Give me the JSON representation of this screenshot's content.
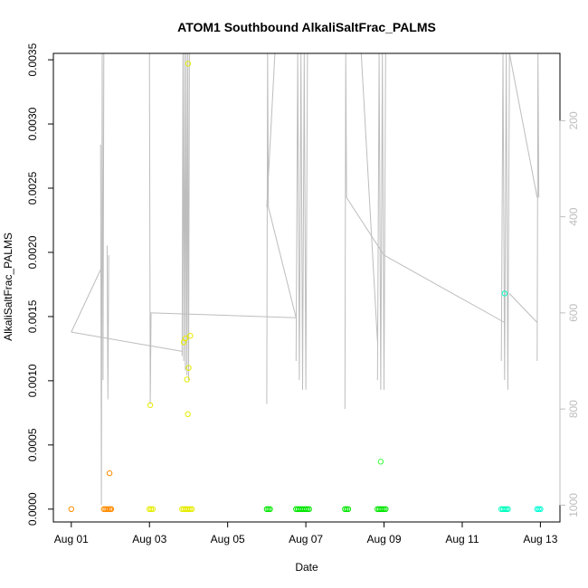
{
  "chart_data": {
    "type": "scatter",
    "title": "ATOM1 Southbound AlkaliSaltFrac_PALMS",
    "xlabel": "Date",
    "ylabel": "AlkaliSaltFrac_PALMS",
    "x_tick_labels": [
      "Aug 01",
      "Aug 03",
      "Aug 05",
      "Aug 07",
      "Aug 09",
      "Aug 11",
      "Aug 13"
    ],
    "x_ticks": [
      "2016-08-01",
      "2016-08-03",
      "2016-08-05",
      "2016-08-07",
      "2016-08-09",
      "2016-08-11",
      "2016-08-13"
    ],
    "xlim": [
      "2016-07-31T13:00",
      "2016-08-13T12:00"
    ],
    "ylim": [
      -0.0001,
      0.00355
    ],
    "y_ticks": [
      0.0,
      0.0005,
      0.001,
      0.0015,
      0.002,
      0.0025,
      0.003,
      0.0035
    ],
    "y_tick_labels": [
      "0.0000",
      "0.0005",
      "0.0010",
      "0.0015",
      "0.0020",
      "0.0025",
      "0.0030",
      "0.0035"
    ],
    "y2_axis": {
      "label": "",
      "reversed": true,
      "lim": [
        1035,
        60
      ],
      "ticks": [
        200,
        400,
        600,
        800,
        1000
      ],
      "tick_labels": [
        "200",
        "400",
        "600",
        "800",
        "1000"
      ],
      "color": "#bdbdbd"
    },
    "grid": false,
    "legend": "none",
    "colors": {
      "orange": "#ff8c00",
      "orange_light": "#ffa500",
      "yellow": "#e6ec00",
      "yellow_green": "#c8f000",
      "green": "#00e600",
      "green_light": "#3cff3c",
      "cyan": "#00ffbf",
      "teal": "#00ffd5",
      "pressure_line": "#bdbdbd"
    },
    "series": [
      {
        "kind": "points",
        "points": [
          {
            "t": "2016-08-01T00:00",
            "y": 0.0,
            "c": "#ff8c00"
          },
          {
            "t": "2016-08-01T20:00",
            "y": 0.0,
            "c": "#ff8c00"
          },
          {
            "t": "2016-08-01T21:00",
            "y": 0.0,
            "c": "#ff8c00"
          },
          {
            "t": "2016-08-01T22:00",
            "y": 0.0,
            "c": "#ff8c00"
          },
          {
            "t": "2016-08-01T23:00",
            "y": 0.0,
            "c": "#ff8c00"
          },
          {
            "t": "2016-08-02T00:00",
            "y": 0.0,
            "c": "#ff8c00"
          },
          {
            "t": "2016-08-02T00:30",
            "y": 0.0,
            "c": "#ff8c00"
          },
          {
            "t": "2016-08-01T23:30",
            "y": 0.00028,
            "c": "#ff8c00"
          },
          {
            "t": "2016-08-03T00:00",
            "y": 0.0,
            "c": "#e6ec00"
          },
          {
            "t": "2016-08-03T01:00",
            "y": 0.0,
            "c": "#e6ec00"
          },
          {
            "t": "2016-08-03T02:00",
            "y": 0.0,
            "c": "#e6ec00"
          },
          {
            "t": "2016-08-03T00:30",
            "y": 0.00081,
            "c": "#e6ec00"
          },
          {
            "t": "2016-08-03T20:00",
            "y": 0.0,
            "c": "#e6ec00"
          },
          {
            "t": "2016-08-03T21:00",
            "y": 0.0,
            "c": "#e6ec00"
          },
          {
            "t": "2016-08-03T22:00",
            "y": 0.0,
            "c": "#e6ec00"
          },
          {
            "t": "2016-08-03T23:00",
            "y": 0.0,
            "c": "#e6ec00"
          },
          {
            "t": "2016-08-04T00:00",
            "y": 0.0,
            "c": "#e6ec00"
          },
          {
            "t": "2016-08-04T01:00",
            "y": 0.0,
            "c": "#e6ec00"
          },
          {
            "t": "2016-08-04T02:00",
            "y": 0.0,
            "c": "#e6ec00"
          },
          {
            "t": "2016-08-03T21:00",
            "y": 0.0013,
            "c": "#e6ec00"
          },
          {
            "t": "2016-08-03T22:00",
            "y": 0.00133,
            "c": "#e6ec00"
          },
          {
            "t": "2016-08-03T23:00",
            "y": 0.00101,
            "c": "#e6ec00"
          },
          {
            "t": "2016-08-04T00:00",
            "y": 0.0011,
            "c": "#e6ec00"
          },
          {
            "t": "2016-08-04T01:00",
            "y": 0.00135,
            "c": "#e6ec00"
          },
          {
            "t": "2016-08-03T23:30",
            "y": 0.00074,
            "c": "#e6ec00"
          },
          {
            "t": "2016-08-03T23:45",
            "y": 0.00347,
            "c": "#e6ec00"
          },
          {
            "t": "2016-08-06T00:00",
            "y": 0.0,
            "c": "#00e600"
          },
          {
            "t": "2016-08-06T01:00",
            "y": 0.0,
            "c": "#00e600"
          },
          {
            "t": "2016-08-06T02:00",
            "y": 0.0,
            "c": "#00e600"
          },
          {
            "t": "2016-08-06T18:00",
            "y": 0.0,
            "c": "#00e600"
          },
          {
            "t": "2016-08-06T19:00",
            "y": 0.0,
            "c": "#00e600"
          },
          {
            "t": "2016-08-06T20:00",
            "y": 0.0,
            "c": "#00e600"
          },
          {
            "t": "2016-08-06T21:00",
            "y": 0.0,
            "c": "#00e600"
          },
          {
            "t": "2016-08-06T22:00",
            "y": 0.0,
            "c": "#00e600"
          },
          {
            "t": "2016-08-06T23:00",
            "y": 0.0,
            "c": "#00e600"
          },
          {
            "t": "2016-08-07T00:00",
            "y": 0.0,
            "c": "#00e600"
          },
          {
            "t": "2016-08-07T01:00",
            "y": 0.0,
            "c": "#00e600"
          },
          {
            "t": "2016-08-07T02:00",
            "y": 0.0,
            "c": "#00e600"
          },
          {
            "t": "2016-08-08T00:00",
            "y": 0.0,
            "c": "#00e600"
          },
          {
            "t": "2016-08-08T01:00",
            "y": 0.0,
            "c": "#00e600"
          },
          {
            "t": "2016-08-08T02:00",
            "y": 0.0,
            "c": "#00e600"
          },
          {
            "t": "2016-08-08T20:00",
            "y": 0.0,
            "c": "#00e600"
          },
          {
            "t": "2016-08-08T21:00",
            "y": 0.0,
            "c": "#00e600"
          },
          {
            "t": "2016-08-08T22:00",
            "y": 0.0,
            "c": "#00e600"
          },
          {
            "t": "2016-08-08T23:00",
            "y": 0.0,
            "c": "#00e600"
          },
          {
            "t": "2016-08-09T00:00",
            "y": 0.0,
            "c": "#00e600"
          },
          {
            "t": "2016-08-09T01:00",
            "y": 0.0,
            "c": "#00e600"
          },
          {
            "t": "2016-08-08T22:00",
            "y": 0.00037,
            "c": "#3cff3c"
          },
          {
            "t": "2016-08-12T00:00",
            "y": 0.0,
            "c": "#00ffbf"
          },
          {
            "t": "2016-08-12T01:00",
            "y": 0.0,
            "c": "#00ffbf"
          },
          {
            "t": "2016-08-12T02:00",
            "y": 0.0,
            "c": "#00ffbf"
          },
          {
            "t": "2016-08-12T03:00",
            "y": 0.0,
            "c": "#00ffbf"
          },
          {
            "t": "2016-08-12T04:00",
            "y": 0.0,
            "c": "#00ffbf"
          },
          {
            "t": "2016-08-12T02:00",
            "y": 0.00168,
            "c": "#00ffbf"
          },
          {
            "t": "2016-08-12T22:00",
            "y": 0.0,
            "c": "#00ffd5"
          },
          {
            "t": "2016-08-12T23:00",
            "y": 0.0,
            "c": "#00ffd5"
          },
          {
            "t": "2016-08-13T00:00",
            "y": 0.0,
            "c": "#00ffd5"
          }
        ]
      },
      {
        "kind": "pressure_line",
        "axis": "y2",
        "path": [
          [
            {
              "t": "2016-08-01T00:00",
              "p": 640
            },
            {
              "t": "2016-08-01T18:00",
              "p": 510
            }
          ],
          [
            {
              "t": "2016-08-01T18:00",
              "p": 250
            },
            {
              "t": "2016-08-01T18:30",
              "p": 1000
            },
            {
              "t": "2016-08-01T19:00",
              "p": 60
            },
            {
              "t": "2016-08-01T19:30",
              "p": 740
            },
            {
              "t": "2016-08-01T20:00",
              "p": 60
            }
          ],
          [
            {
              "t": "2016-08-01T22:00",
              "p": 460
            },
            {
              "t": "2016-08-01T22:30",
              "p": 780
            },
            {
              "t": "2016-08-01T23:00",
              "p": 480
            }
          ],
          [
            {
              "t": "2016-08-03T00:00",
              "p": 60
            },
            {
              "t": "2016-08-03T00:30",
              "p": 790
            },
            {
              "t": "2016-08-03T01:00",
              "p": 600
            },
            {
              "t": "2016-08-03T02:00",
              "p": 600
            }
          ],
          [
            {
              "t": "2016-08-01T00:00",
              "p": 640
            },
            {
              "t": "2016-08-03T20:00",
              "p": 680
            }
          ],
          [
            {
              "t": "2016-08-03T20:00",
              "p": 690
            },
            {
              "t": "2016-08-03T20:30",
              "p": 60
            },
            {
              "t": "2016-08-03T21:00",
              "p": 700
            },
            {
              "t": "2016-08-03T21:30",
              "p": 60
            },
            {
              "t": "2016-08-03T22:00",
              "p": 720
            },
            {
              "t": "2016-08-03T22:30",
              "p": 60
            },
            {
              "t": "2016-08-03T23:00",
              "p": 730
            },
            {
              "t": "2016-08-03T23:30",
              "p": 60
            },
            {
              "t": "2016-08-04T00:00",
              "p": 740
            },
            {
              "t": "2016-08-04T00:30",
              "p": 60
            }
          ],
          [
            {
              "t": "2016-08-03T02:00",
              "p": 600
            },
            {
              "t": "2016-08-06T18:00",
              "p": 610
            }
          ],
          [
            {
              "t": "2016-08-06T00:00",
              "p": 790
            },
            {
              "t": "2016-08-06T00:30",
              "p": 60
            },
            {
              "t": "2016-08-06T01:00",
              "p": 380
            }
          ],
          [
            {
              "t": "2016-08-06T01:00",
              "p": 380
            },
            {
              "t": "2016-08-06T18:00",
              "p": 610
            }
          ],
          [
            {
              "t": "2016-08-06T18:00",
              "p": 700
            },
            {
              "t": "2016-08-06T19:00",
              "p": 60
            },
            {
              "t": "2016-08-06T20:00",
              "p": 740
            },
            {
              "t": "2016-08-06T21:00",
              "p": 60
            },
            {
              "t": "2016-08-06T22:00",
              "p": 760
            },
            {
              "t": "2016-08-06T23:00",
              "p": 60
            },
            {
              "t": "2016-08-07T00:00",
              "p": 760
            },
            {
              "t": "2016-08-07T01:00",
              "p": 60
            }
          ],
          [
            {
              "t": "2016-08-06T05:00",
              "p": 60
            },
            {
              "t": "2016-08-06T00:00",
              "p": 380
            }
          ],
          [
            {
              "t": "2016-08-08T00:00",
              "p": 800
            },
            {
              "t": "2016-08-08T00:30",
              "p": 60
            },
            {
              "t": "2016-08-08T01:00",
              "p": 360
            }
          ],
          [
            {
              "t": "2016-08-08T01:00",
              "p": 360
            },
            {
              "t": "2016-08-09T00:00",
              "p": 480
            }
          ],
          [
            {
              "t": "2016-08-08T10:00",
              "p": 60
            },
            {
              "t": "2016-08-08T20:00",
              "p": 660
            }
          ],
          [
            {
              "t": "2016-08-08T20:00",
              "p": 740
            },
            {
              "t": "2016-08-08T21:00",
              "p": 60
            },
            {
              "t": "2016-08-08T22:00",
              "p": 760
            },
            {
              "t": "2016-08-08T23:00",
              "p": 60
            },
            {
              "t": "2016-08-09T00:00",
              "p": 760
            },
            {
              "t": "2016-08-09T01:00",
              "p": 60
            }
          ],
          [
            {
              "t": "2016-08-09T00:00",
              "p": 480
            },
            {
              "t": "2016-08-12T02:00",
              "p": 620
            }
          ],
          [
            {
              "t": "2016-08-12T00:00",
              "p": 700
            },
            {
              "t": "2016-08-12T01:00",
              "p": 60
            },
            {
              "t": "2016-08-12T02:00",
              "p": 740
            },
            {
              "t": "2016-08-12T03:00",
              "p": 60
            },
            {
              "t": "2016-08-12T04:00",
              "p": 760
            },
            {
              "t": "2016-08-12T05:00",
              "p": 60
            }
          ],
          [
            {
              "t": "2016-08-12T05:00",
              "p": 60
            },
            {
              "t": "2016-08-12T22:00",
              "p": 360
            }
          ],
          [
            {
              "t": "2016-08-12T05:00",
              "p": 560
            },
            {
              "t": "2016-08-12T22:00",
              "p": 620
            }
          ],
          [
            {
              "t": "2016-08-12T22:00",
              "p": 700
            },
            {
              "t": "2016-08-12T22:30",
              "p": 60
            },
            {
              "t": "2016-08-12T23:00",
              "p": 360
            }
          ]
        ]
      }
    ]
  }
}
